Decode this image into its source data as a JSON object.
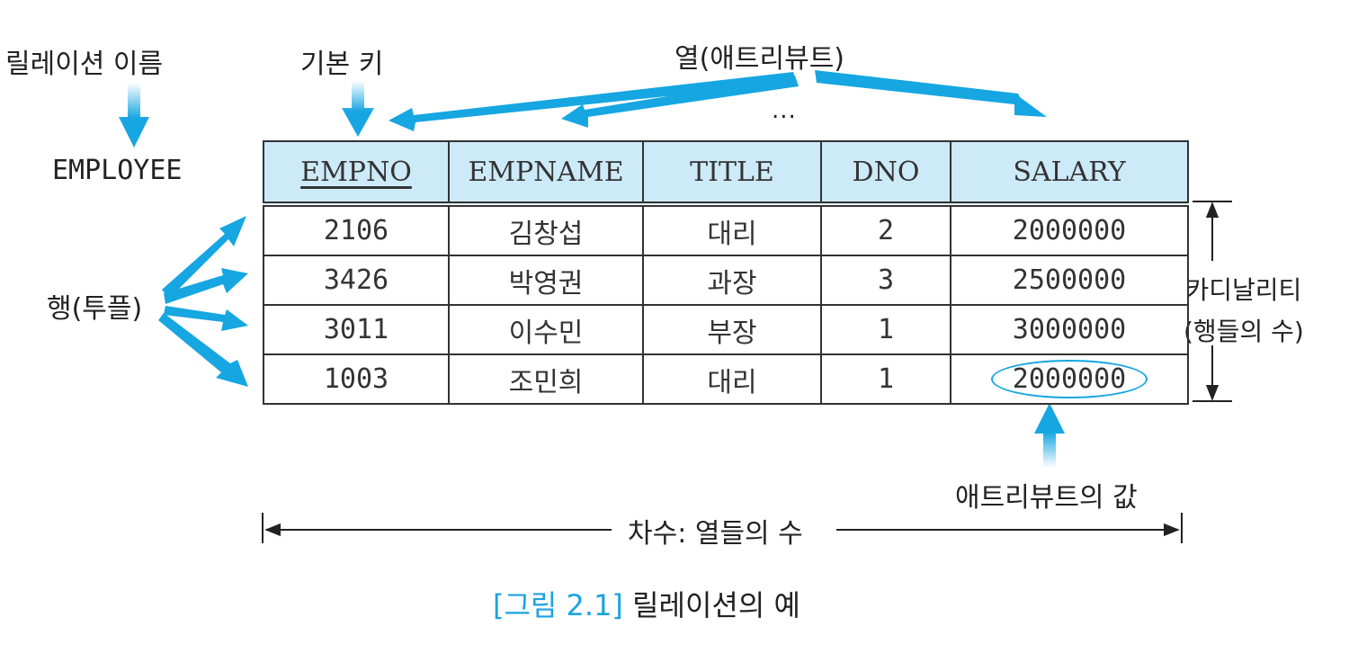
{
  "labels": {
    "relation_name_label": "릴레이션 이름",
    "primary_key_label": "기본 키",
    "column_label": "열(애트리뷰트)",
    "ellipsis": "...",
    "relation_name": "EMPLOYEE",
    "row_label": "행(투플)",
    "cardinality_line1": "카디날리티",
    "cardinality_line2": "(행들의 수)",
    "attribute_value_label": "애트리뷰트의 값",
    "degree_label": "차수: 열들의 수"
  },
  "caption": {
    "figure": "[그림 2.1]",
    "text": "릴레이션의 예"
  },
  "table": {
    "columns": [
      "EMPNO",
      "EMPNAME",
      "TITLE",
      "DNO",
      "SALARY"
    ],
    "rows": [
      [
        "2106",
        "김창섭",
        "대리",
        "2",
        "2000000"
      ],
      [
        "3426",
        "박영권",
        "과장",
        "3",
        "2500000"
      ],
      [
        "3011",
        "이수민",
        "부장",
        "1",
        "3000000"
      ],
      [
        "1003",
        "조민희",
        "대리",
        "1",
        "2000000"
      ]
    ]
  },
  "colors": {
    "arrow": "#16a6e2",
    "header_bg": "#cdeaf8",
    "caption_accent": "#1aa3e0"
  }
}
